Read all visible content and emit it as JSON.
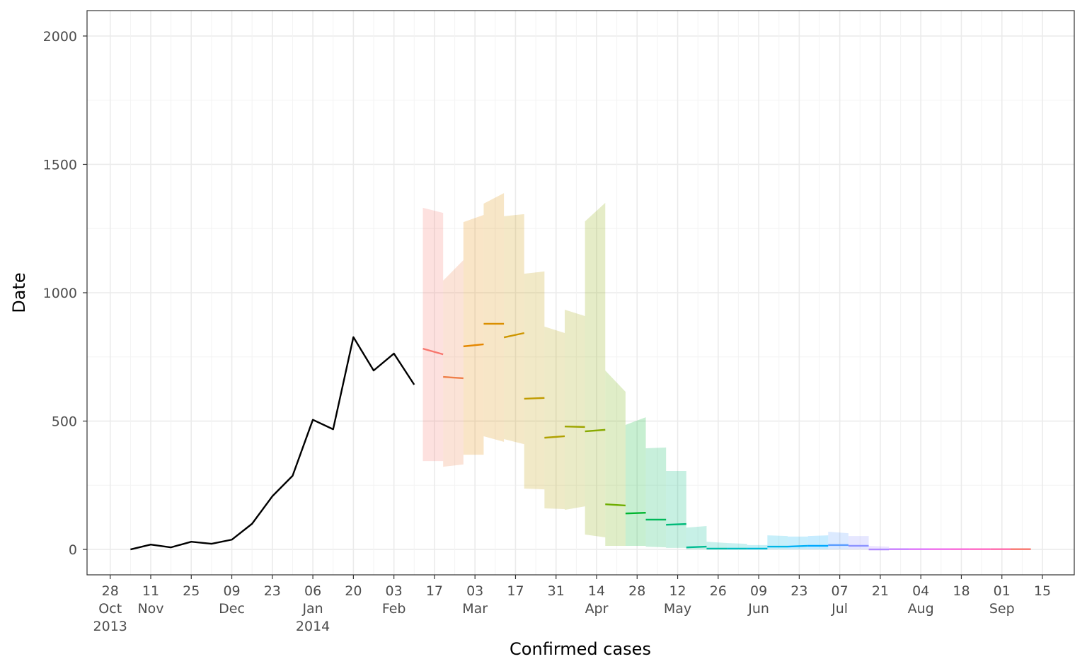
{
  "chart_data": {
    "type": "line",
    "x_label": "Confirmed cases",
    "y_label": "Date",
    "xlim": [
      "2013-10-20",
      "2014-09-26"
    ],
    "ylim": [
      -99,
      2099
    ],
    "grid": true,
    "yticks": [
      0,
      500,
      1000,
      1500,
      2000
    ],
    "xticks": [
      {
        "value": "2013-10-28",
        "label": "28\nOct\n2013"
      },
      {
        "value": "2013-11-11",
        "label": "11\nNov"
      },
      {
        "value": "2013-11-25",
        "label": "25"
      },
      {
        "value": "2013-12-09",
        "label": "09\nDec"
      },
      {
        "value": "2013-12-23",
        "label": "23"
      },
      {
        "value": "2014-01-06",
        "label": "06\nJan\n2014"
      },
      {
        "value": "2014-01-20",
        "label": "20"
      },
      {
        "value": "2014-02-03",
        "label": "03\nFeb"
      },
      {
        "value": "2014-02-17",
        "label": "17"
      },
      {
        "value": "2014-03-03",
        "label": "03\nMar"
      },
      {
        "value": "2014-03-17",
        "label": "17"
      },
      {
        "value": "2014-03-31",
        "label": "31"
      },
      {
        "value": "2014-04-14",
        "label": "14\nApr"
      },
      {
        "value": "2014-04-28",
        "label": "28"
      },
      {
        "value": "2014-05-12",
        "label": "12\nMay"
      },
      {
        "value": "2014-05-26",
        "label": "26"
      },
      {
        "value": "2014-06-09",
        "label": "09\nJun"
      },
      {
        "value": "2014-06-23",
        "label": "23"
      },
      {
        "value": "2014-07-07",
        "label": "07\nJul"
      },
      {
        "value": "2014-07-21",
        "label": "21"
      },
      {
        "value": "2014-08-04",
        "label": "04\nAug"
      },
      {
        "value": "2014-08-18",
        "label": "18"
      },
      {
        "value": "2014-09-01",
        "label": "01\nSep"
      },
      {
        "value": "2014-09-15",
        "label": "15"
      }
    ],
    "series": [
      {
        "color": "#000000",
        "x": [
          "2013-11-04",
          "2013-11-11",
          "2013-11-18",
          "2013-11-25",
          "2013-12-02",
          "2013-12-09",
          "2013-12-16",
          "2013-12-23",
          "2013-12-30",
          "2014-01-06",
          "2014-01-13",
          "2014-01-20",
          "2014-01-27",
          "2014-02-03",
          "2014-02-10"
        ],
        "values": [
          0,
          19,
          8,
          30,
          22,
          38,
          100,
          207,
          287,
          505,
          468,
          827,
          697,
          763,
          642
        ]
      }
    ],
    "projections": [
      {
        "color": "#F8766D",
        "x": [
          "2014-02-13",
          "2014-02-20"
        ],
        "values": [
          782,
          760
        ],
        "lower": [
          344,
          344
        ],
        "upper": [
          1331,
          1311
        ]
      },
      {
        "color": "#EF7F49",
        "x": [
          "2014-02-20",
          "2014-02-27"
        ],
        "values": [
          672,
          667
        ],
        "lower": [
          322,
          331
        ],
        "upper": [
          1047,
          1127
        ]
      },
      {
        "color": "#E58700",
        "x": [
          "2014-02-27",
          "2014-03-06"
        ],
        "values": [
          791,
          799
        ],
        "lower": [
          369,
          369
        ],
        "upper": [
          1275,
          1303
        ]
      },
      {
        "color": "#DA8F00",
        "x": [
          "2014-03-06",
          "2014-03-13"
        ],
        "values": [
          879,
          879
        ],
        "lower": [
          441,
          419
        ],
        "upper": [
          1347,
          1388
        ]
      },
      {
        "color": "#CE9600",
        "x": [
          "2014-03-13",
          "2014-03-20"
        ],
        "values": [
          826,
          843
        ],
        "lower": [
          430,
          410
        ],
        "upper": [
          1298,
          1306
        ]
      },
      {
        "color": "#C09B00",
        "x": [
          "2014-03-20",
          "2014-03-27"
        ],
        "values": [
          587,
          590
        ],
        "lower": [
          237,
          234
        ],
        "upper": [
          1074,
          1083
        ]
      },
      {
        "color": "#B0A100",
        "x": [
          "2014-03-27",
          "2014-04-03"
        ],
        "values": [
          435,
          441
        ],
        "lower": [
          160,
          157
        ],
        "upper": [
          868,
          843
        ]
      },
      {
        "color": "#9EA500",
        "x": [
          "2014-04-03",
          "2014-04-10"
        ],
        "values": [
          479,
          477
        ],
        "lower": [
          154,
          168
        ],
        "upper": [
          934,
          909
        ]
      },
      {
        "color": "#88A900",
        "x": [
          "2014-04-10",
          "2014-04-17"
        ],
        "values": [
          460,
          466
        ],
        "lower": [
          58,
          47
        ],
        "upper": [
          1278,
          1350
        ]
      },
      {
        "color": "#6EAD00",
        "x": [
          "2014-04-17",
          "2014-04-24"
        ],
        "values": [
          176,
          171
        ],
        "lower": [
          14,
          14
        ],
        "upper": [
          697,
          614
        ]
      },
      {
        "color": "#00B52E",
        "x": [
          "2014-04-24",
          "2014-05-01"
        ],
        "values": [
          140,
          143
        ],
        "lower": [
          14,
          14
        ],
        "upper": [
          485,
          515
        ]
      },
      {
        "color": "#00B85A",
        "x": [
          "2014-05-01",
          "2014-05-08"
        ],
        "values": [
          116,
          116
        ],
        "lower": [
          11,
          8
        ],
        "upper": [
          394,
          397
        ]
      },
      {
        "color": "#00BA79",
        "x": [
          "2014-05-08",
          "2014-05-15"
        ],
        "values": [
          96,
          99
        ],
        "lower": [
          6,
          6
        ],
        "upper": [
          306,
          306
        ]
      },
      {
        "color": "#00BC93",
        "x": [
          "2014-05-15",
          "2014-05-22"
        ],
        "values": [
          8,
          11
        ],
        "lower": [
          0,
          0
        ],
        "upper": [
          85,
          91
        ]
      },
      {
        "color": "#00BDAB",
        "x": [
          "2014-05-22",
          "2014-05-29"
        ],
        "values": [
          3,
          3
        ],
        "lower": [
          0,
          0
        ],
        "upper": [
          30,
          25
        ]
      },
      {
        "color": "#00BDC1",
        "x": [
          "2014-05-29",
          "2014-06-05"
        ],
        "values": [
          3,
          3
        ],
        "lower": [
          0,
          0
        ],
        "upper": [
          25,
          22
        ]
      },
      {
        "color": "#00BAD5",
        "x": [
          "2014-06-05",
          "2014-06-12"
        ],
        "values": [
          3,
          3
        ],
        "lower": [
          0,
          0
        ],
        "upper": [
          17,
          17
        ]
      },
      {
        "color": "#00B6E6",
        "x": [
          "2014-06-12",
          "2014-06-19"
        ],
        "values": [
          11,
          11
        ],
        "lower": [
          0,
          0
        ],
        "upper": [
          55,
          52
        ]
      },
      {
        "color": "#00B0F5",
        "x": [
          "2014-06-19",
          "2014-06-26"
        ],
        "values": [
          11,
          14
        ],
        "lower": [
          0,
          0
        ],
        "upper": [
          50,
          50
        ]
      },
      {
        "color": "#00A8FF",
        "x": [
          "2014-06-26",
          "2014-07-03"
        ],
        "values": [
          14,
          14
        ],
        "lower": [
          0,
          0
        ],
        "upper": [
          52,
          55
        ]
      },
      {
        "color": "#5E9EFF",
        "x": [
          "2014-07-03",
          "2014-07-10"
        ],
        "values": [
          17,
          17
        ],
        "lower": [
          0,
          0
        ],
        "upper": [
          69,
          63
        ]
      },
      {
        "color": "#8D93FF",
        "x": [
          "2014-07-10",
          "2014-07-17"
        ],
        "values": [
          14,
          14
        ],
        "lower": [
          0,
          0
        ],
        "upper": [
          52,
          52
        ]
      },
      {
        "color": "#AF88FF",
        "x": [
          "2014-07-17",
          "2014-07-24"
        ],
        "values": [
          0,
          0
        ],
        "lower": [
          0,
          0
        ],
        "upper": [
          14,
          11
        ]
      },
      {
        "color": "#C97EFF",
        "x": [
          "2014-07-24",
          "2014-07-31"
        ],
        "values": [
          1,
          1
        ],
        "lower": [
          0,
          0
        ],
        "upper": [
          3,
          3
        ]
      },
      {
        "color": "#DF74FB",
        "x": [
          "2014-07-31",
          "2014-08-07"
        ],
        "values": [
          1,
          1
        ],
        "lower": [
          0,
          0
        ],
        "upper": [
          3,
          3
        ]
      },
      {
        "color": "#EF6EEC",
        "x": [
          "2014-08-07",
          "2014-08-14"
        ],
        "values": [
          1,
          1
        ],
        "lower": [
          0,
          0
        ],
        "upper": [
          3,
          3
        ]
      },
      {
        "color": "#F96ADA",
        "x": [
          "2014-08-14",
          "2014-08-21"
        ],
        "values": [
          1,
          1
        ],
        "lower": [
          0,
          0
        ],
        "upper": [
          3,
          3
        ]
      },
      {
        "color": "#FF69C4",
        "x": [
          "2014-08-21",
          "2014-08-28"
        ],
        "values": [
          1,
          1
        ],
        "lower": [
          0,
          0
        ],
        "upper": [
          3,
          3
        ]
      },
      {
        "color": "#FF6AAC",
        "x": [
          "2014-08-28",
          "2014-09-04"
        ],
        "values": [
          1,
          1
        ],
        "lower": [
          0,
          0
        ],
        "upper": [
          3,
          3
        ]
      },
      {
        "color": "#F8766D",
        "x": [
          "2014-09-04",
          "2014-09-11"
        ],
        "values": [
          1,
          1
        ],
        "lower": [
          0,
          0
        ],
        "upper": [
          3,
          3
        ]
      }
    ]
  }
}
